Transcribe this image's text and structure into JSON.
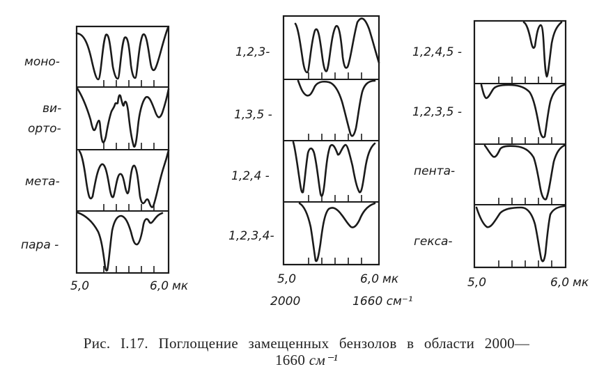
{
  "panels": [
    {
      "labels": [
        "моно-",
        "ви-",
        "орто-",
        "мета-",
        "пара -"
      ],
      "x_start": "5,0",
      "x_end": "6,0",
      "x_unit": "мк"
    },
    {
      "labels": [
        "1,2,3-",
        "1,3,5 -",
        "1,2,4 -",
        "1,2,3,4-"
      ],
      "x_start": "5,0",
      "x_end": "6,0",
      "x_unit": "мк",
      "wavenumber_start": "2000",
      "wavenumber_end": "1660 см⁻¹"
    },
    {
      "labels": [
        "1,2,4,5 -",
        "1,2,3,5 -",
        "пента-",
        "гекса-"
      ],
      "x_start": "5,0",
      "x_end": "6,0",
      "x_unit": "мк"
    }
  ],
  "caption": {
    "line1": "Рис. I.17. Поглощение замещенных бензолов в области 2000—",
    "line2_number": "1660",
    "line2_unit": "см⁻¹"
  },
  "colors": {
    "ink": "#1a1a1a",
    "paper": "#ffffff"
  }
}
